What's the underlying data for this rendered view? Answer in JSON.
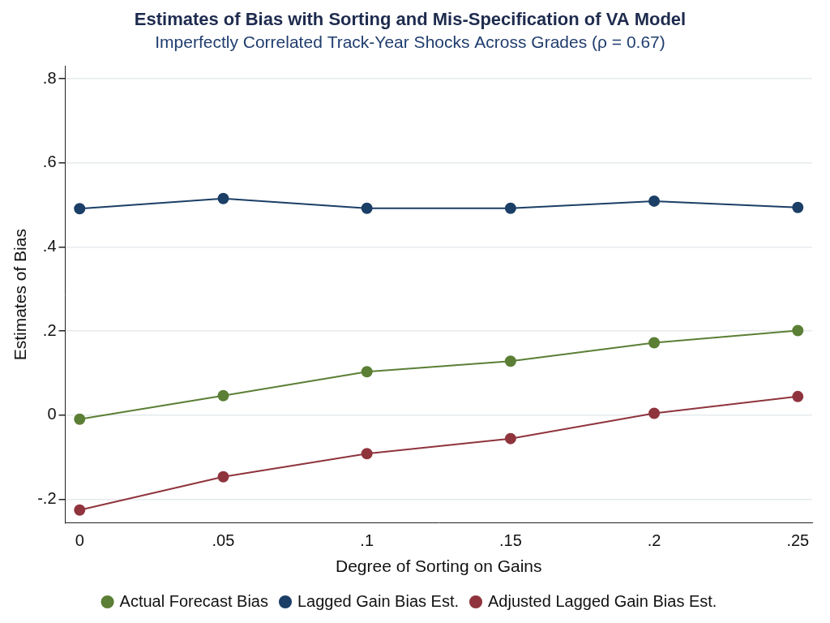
{
  "chart_data": {
    "type": "line",
    "title": "Estimates of Bias with Sorting and Mis-Specification of VA Model",
    "subtitle": "Imperfectly Correlated Track-Year Shocks Across Grades (ρ = 0.67)",
    "x_label": "Degree of Sorting on Gains",
    "y_label": "Estimates of Bias",
    "x": [
      0,
      0.05,
      0.1,
      0.15,
      0.2,
      0.25
    ],
    "series": [
      {
        "name": "Actual Forecast Bias",
        "color": "#5b7f35",
        "marker": "circle",
        "line_style": "solid",
        "values": [
          -0.01,
          0.046,
          0.103,
          0.128,
          0.172,
          0.201
        ]
      },
      {
        "name": "Lagged Gain Bias Est.",
        "color": "#1b3f66",
        "marker": "circle",
        "line_style": "solid",
        "values": [
          0.491,
          0.515,
          0.492,
          0.492,
          0.509,
          0.494
        ]
      },
      {
        "name": "Adjusted Lagged Gain Bias Est.",
        "color": "#8f343d",
        "marker": "circle",
        "line_style": "solid",
        "values": [
          -0.226,
          -0.147,
          -0.092,
          -0.056,
          0.004,
          0.044
        ]
      }
    ],
    "xlim": [
      -0.005,
      0.255
    ],
    "xticks": [
      0,
      {
        "value": 0.05,
        "label": ".05"
      },
      {
        "value": 0.1,
        "label": ".1"
      },
      {
        "value": 0.15,
        "label": ".15"
      },
      {
        "value": 0.2,
        "label": ".2"
      },
      {
        "value": 0.25,
        "label": ".25"
      }
    ],
    "ylim": [
      -0.257,
      0.83
    ],
    "yticks": [
      {
        "value": -0.2,
        "label": "-.2"
      },
      0,
      {
        "value": 0.2,
        "label": ".2"
      },
      {
        "value": 0.4,
        "label": ".4"
      },
      {
        "value": 0.6,
        "label": ".6"
      },
      {
        "value": 0.8,
        "label": ".8"
      }
    ],
    "grid": true,
    "legend": "bottom"
  }
}
